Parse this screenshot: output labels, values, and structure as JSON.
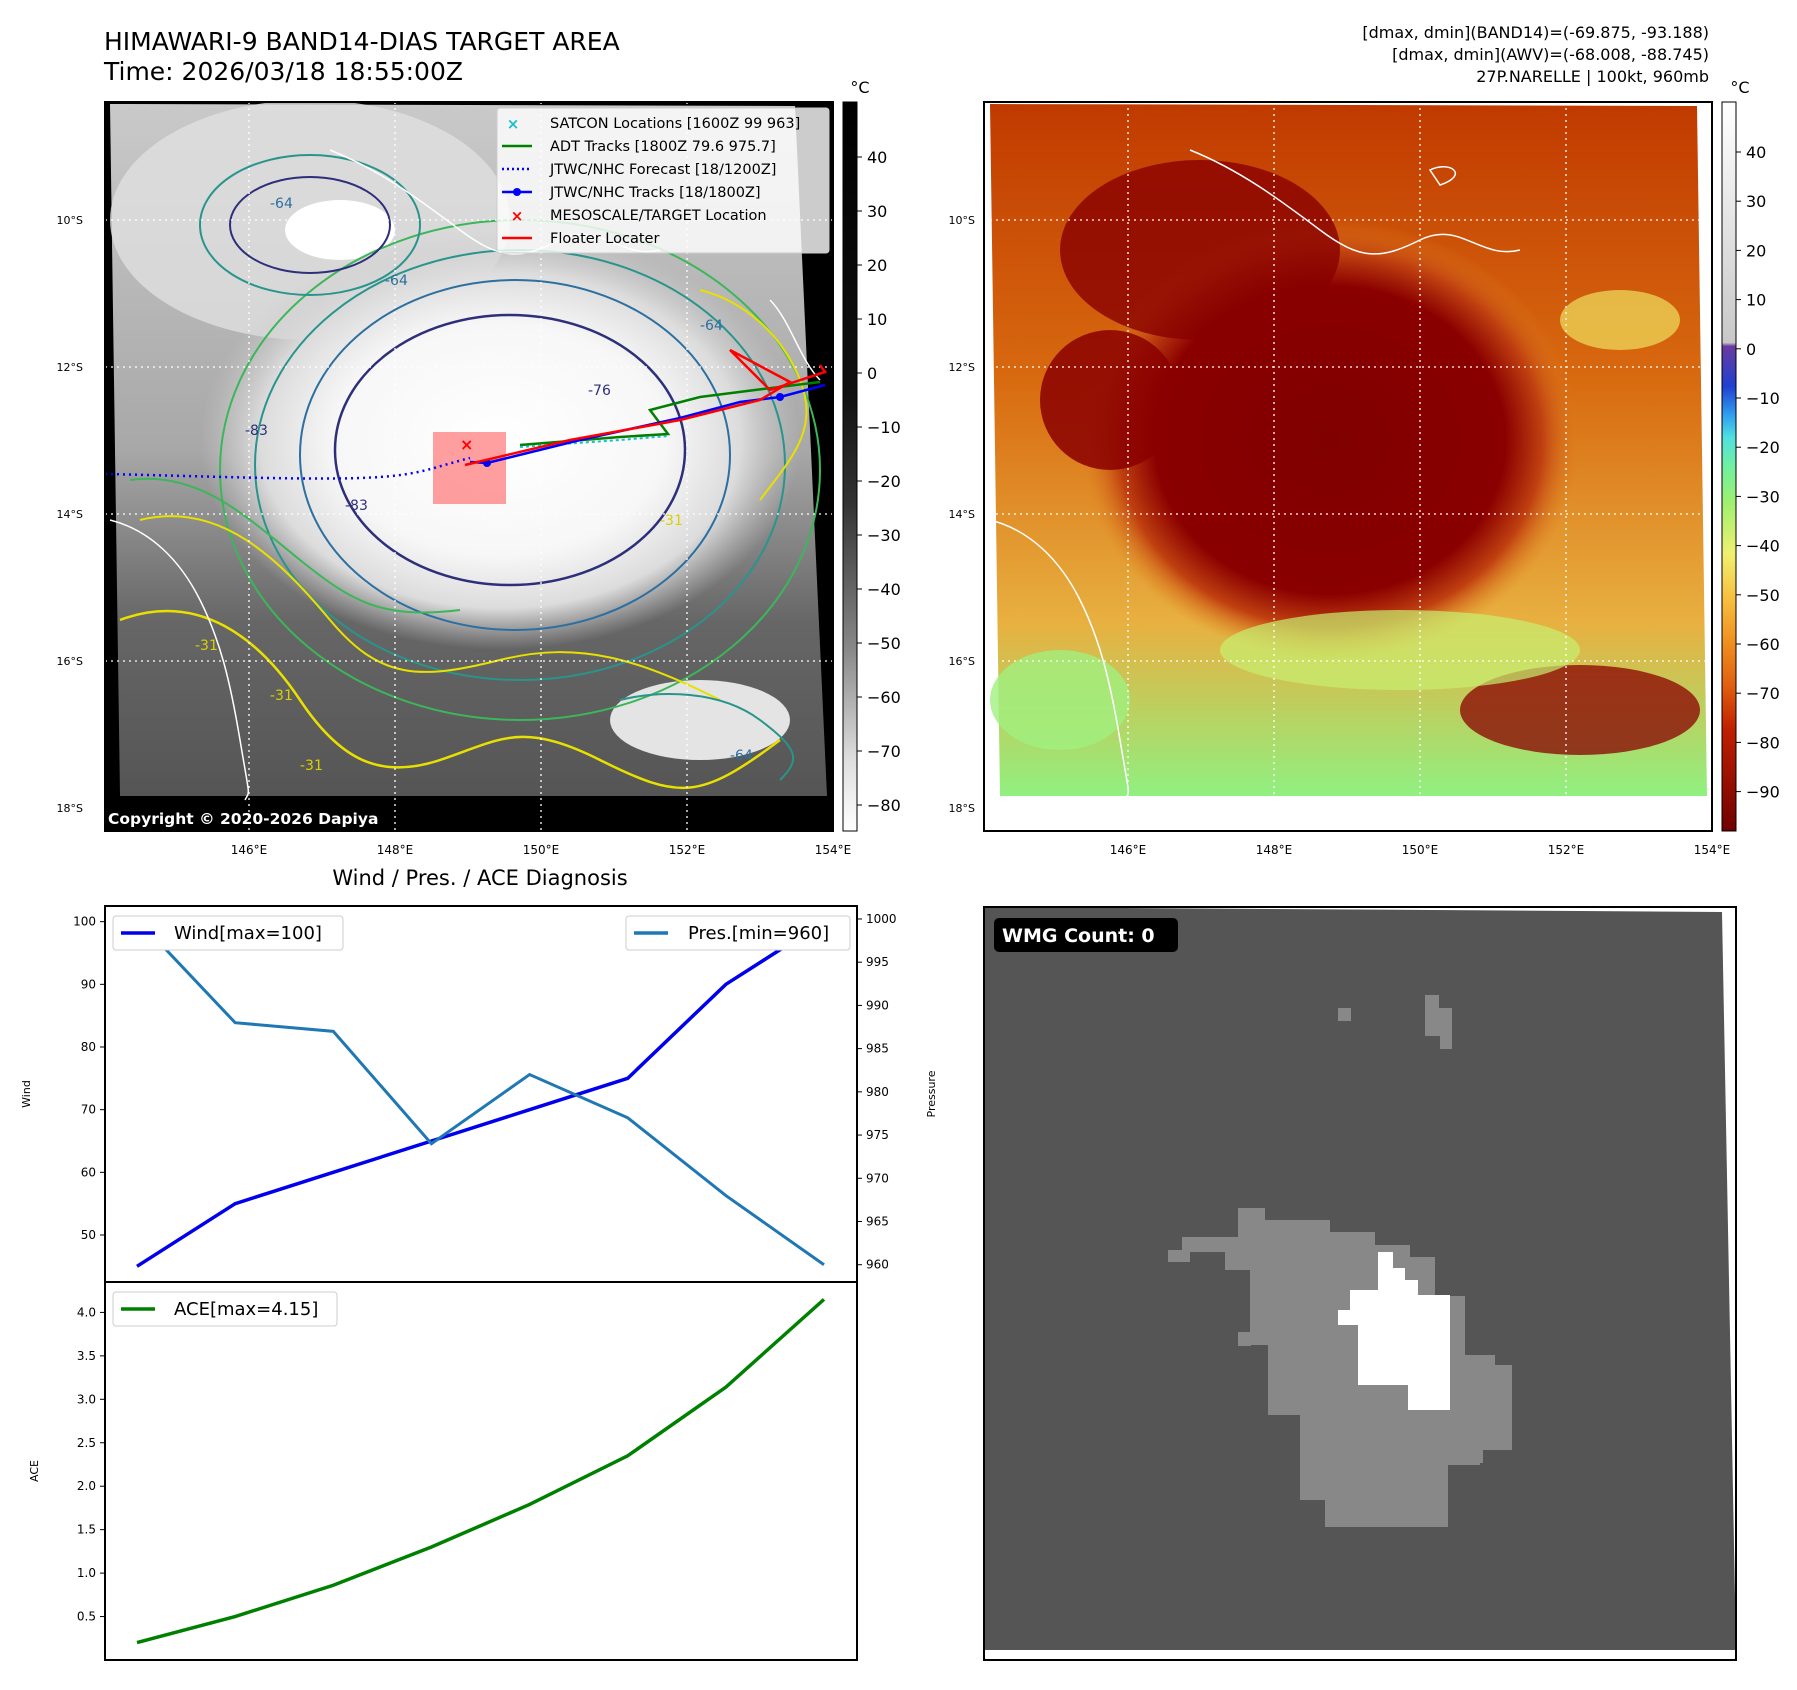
{
  "header": {
    "title_line1": "HIMAWARI-9 BAND14-DIAS TARGET AREA",
    "title_line2": "Time: 2026/03/18 18:55:00Z",
    "info_line1": "[dmax, dmin](BAND14)=(-69.875, -93.188)",
    "info_line2": "[dmax, dmin](AWV)=(-68.008, -88.745)",
    "info_line3": "27P.NARELLE | 100kt, 960mb"
  },
  "copyright": "Copyright © 2020-2026 Dapiya",
  "map_axes": {
    "lat_labels": [
      "10°S",
      "12°S",
      "14°S",
      "16°S",
      "18°S"
    ],
    "lon_labels": [
      "146°E",
      "148°E",
      "150°E",
      "152°E",
      "154°E"
    ]
  },
  "colorbar_left": {
    "unit": "°C",
    "ticks": [
      "40",
      "30",
      "20",
      "10",
      "0",
      "−10",
      "−20",
      "−30",
      "−40",
      "−50",
      "−60",
      "−70",
      "−80"
    ]
  },
  "colorbar_right": {
    "unit": "°C",
    "ticks": [
      "40",
      "30",
      "20",
      "10",
      "0",
      "−10",
      "−20",
      "−30",
      "−40",
      "−50",
      "−60",
      "−70",
      "−80",
      "−90"
    ]
  },
  "map_legend": [
    {
      "label": "SATCON Locations [1600Z 99 963]",
      "marker": "x",
      "color": "#17bfcf"
    },
    {
      "label": "ADT Tracks [1800Z 79.6 975.7]",
      "marker": "line",
      "color": "#008000"
    },
    {
      "label": "JTWC/NHC Forecast [18/1200Z]",
      "marker": "dotted",
      "color": "#0000ff"
    },
    {
      "label": "JTWC/NHC Tracks [18/1800Z]",
      "marker": "line-dot",
      "color": "#0000ff"
    },
    {
      "label": "MESOSCALE/TARGET Location",
      "marker": "x",
      "color": "#ff0000"
    },
    {
      "label": "Floater Locater",
      "marker": "line",
      "color": "#ff0000"
    }
  ],
  "contour_labels": [
    "-64",
    "-64",
    "-76",
    "-83",
    "-83",
    "-31",
    "-31",
    "-31",
    "-31",
    "-64",
    "-64"
  ],
  "wmg_badge": "WMG Count: 0",
  "colors": {
    "wind": "#0000ee",
    "pressure": "#1f77b4",
    "ace": "#008000",
    "wmg_bg": "#555555",
    "wmg_mid": "#888888",
    "wmg_core": "#ffffff"
  },
  "chart_data": [
    {
      "type": "line",
      "title": "Wind / Pres. / ACE Diagnosis",
      "series": [
        {
          "name": "Wind",
          "legend": "Wind[max=100]",
          "axis": "left",
          "values": [
            45,
            55,
            60,
            65,
            70,
            75,
            90,
            100
          ]
        },
        {
          "name": "Pressure",
          "legend": "Pres.[min=960]",
          "axis": "right",
          "values": [
            1000,
            988,
            987,
            974,
            982,
            977,
            968,
            960
          ]
        }
      ],
      "ylabel": "Wind",
      "ylabel_right": "Pressure",
      "yticks": [
        "50",
        "60",
        "70",
        "80",
        "90",
        "100"
      ],
      "yticks_right": [
        "960",
        "965",
        "970",
        "975",
        "980",
        "985",
        "990",
        "995",
        "1000"
      ],
      "ylim": [
        42.5,
        102.5
      ],
      "ylim_right": [
        958,
        1001.5
      ]
    },
    {
      "type": "line",
      "series": [
        {
          "name": "ACE",
          "legend": "ACE[max=4.15]",
          "values": [
            0.2,
            0.5,
            0.86,
            1.3,
            1.79,
            2.35,
            3.14,
            4.15
          ]
        }
      ],
      "ylabel": "ACE",
      "yticks": [
        "0.5",
        "1.0",
        "1.5",
        "2.0",
        "2.5",
        "3.0",
        "3.5",
        "4.0"
      ],
      "ylim": [
        0.0,
        4.35
      ]
    }
  ]
}
